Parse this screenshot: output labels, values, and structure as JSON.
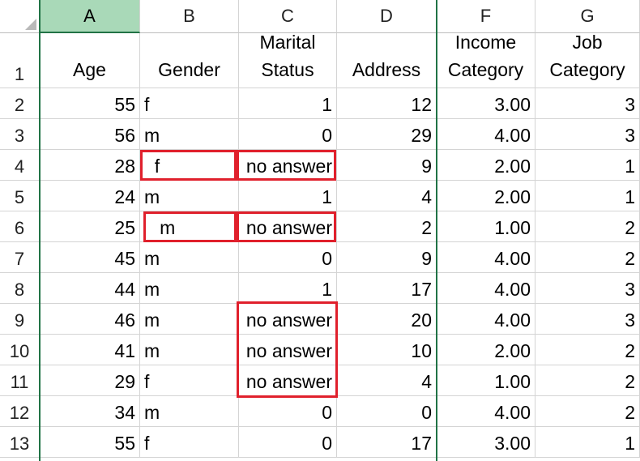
{
  "column_headers": [
    "A",
    "B",
    "C",
    "D",
    "F",
    "G"
  ],
  "selected_column": "A",
  "row_numbers": [
    "1",
    "2",
    "3",
    "4",
    "5",
    "6",
    "7",
    "8",
    "9",
    "10",
    "11",
    "12",
    "13"
  ],
  "header_row": {
    "age": "Age",
    "gender": "Gender",
    "marital_line1": "Marital",
    "marital_line2": "Status",
    "address": "Address",
    "income_line1": "Income",
    "income_line2": "Category",
    "job_line1": "Job",
    "job_line2": "Category"
  },
  "rows": [
    {
      "age": "55",
      "gender": "f",
      "marital": "1",
      "address": "12",
      "income": "3.00",
      "job": "3"
    },
    {
      "age": "56",
      "gender": "m",
      "marital": "0",
      "address": "29",
      "income": "4.00",
      "job": "3"
    },
    {
      "age": "28",
      "gender": "  f",
      "marital": "no answer",
      "address": "9",
      "income": "2.00",
      "job": "1"
    },
    {
      "age": "24",
      "gender": "m",
      "marital": "1",
      "address": "4",
      "income": "2.00",
      "job": "1"
    },
    {
      "age": "25",
      "gender": "   m",
      "marital": "no answer",
      "address": "2",
      "income": "1.00",
      "job": "2"
    },
    {
      "age": "45",
      "gender": "m",
      "marital": "0",
      "address": "9",
      "income": "4.00",
      "job": "2"
    },
    {
      "age": "44",
      "gender": "m",
      "marital": "1",
      "address": "17",
      "income": "4.00",
      "job": "3"
    },
    {
      "age": "46",
      "gender": "m",
      "marital": "no answer",
      "address": "20",
      "income": "4.00",
      "job": "3"
    },
    {
      "age": "41",
      "gender": "m",
      "marital": "no answer",
      "address": "10",
      "income": "2.00",
      "job": "2"
    },
    {
      "age": "29",
      "gender": "f",
      "marital": "no answer",
      "address": "4",
      "income": "1.00",
      "job": "2"
    },
    {
      "age": "34",
      "gender": "m",
      "marital": "0",
      "address": "0",
      "income": "4.00",
      "job": "2"
    },
    {
      "age": "55",
      "gender": "f",
      "marital": "0",
      "address": "17",
      "income": "3.00",
      "job": "1"
    }
  ],
  "colors": {
    "selected_header": "#a9d9b8",
    "freeze_line": "#217346",
    "highlight_box": "#e0202c",
    "gridline": "#d4d4d4"
  }
}
